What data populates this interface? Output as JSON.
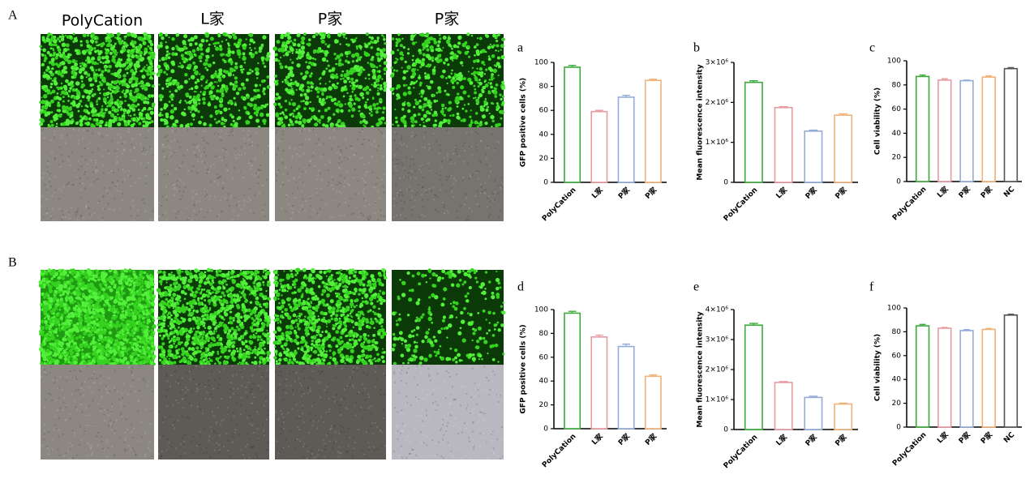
{
  "figure": {
    "panel_labels": [
      "A",
      "B"
    ],
    "column_headers": [
      "PolyCation",
      "L家",
      "P家",
      "P家"
    ]
  },
  "chart_data": [
    {
      "type": "bar",
      "label": "a",
      "y_label": "GFP positive cells (%)",
      "categories": [
        "PolyCation",
        "L家",
        "P家",
        "P家"
      ],
      "values": [
        96,
        59,
        71,
        85
      ],
      "errors": [
        1.5,
        1,
        1.5,
        1
      ],
      "colors": [
        "#3aaa3a",
        "#e89aa0",
        "#93acd8",
        "#f0b27a"
      ],
      "ylim": [
        0,
        100
      ],
      "yticks": [
        0,
        20,
        40,
        60,
        80,
        100
      ]
    },
    {
      "type": "bar",
      "label": "b",
      "y_label": "Mean fluorescence intensity",
      "categories": [
        "PolyCation",
        "L家",
        "P家",
        "P家"
      ],
      "values": [
        2500000,
        1870000,
        1280000,
        1680000
      ],
      "errors": [
        40000,
        25000,
        25000,
        35000
      ],
      "colors": [
        "#3aaa3a",
        "#e89aa0",
        "#93acd8",
        "#f0b27a"
      ],
      "ylim": [
        0,
        3000000
      ],
      "yticks": [
        0,
        {
          "value": 1000000,
          "label": "1×10⁶"
        },
        {
          "value": 2000000,
          "label": "2×10⁶"
        },
        {
          "value": 3000000,
          "label": "3×10⁶"
        }
      ]
    },
    {
      "type": "bar",
      "label": "c",
      "y_label": "Cell viability (%)",
      "categories": [
        "PolyCation",
        "L家",
        "P家",
        "P家",
        "NC"
      ],
      "values": [
        87,
        84,
        83.5,
        86.5,
        93.5
      ],
      "errors": [
        1.2,
        1.2,
        0.5,
        1,
        0.8
      ],
      "colors": [
        "#3aaa3a",
        "#e89aa0",
        "#93acd8",
        "#f0b27a",
        "#555555"
      ],
      "ylim": [
        0,
        100
      ],
      "yticks": [
        0,
        20,
        40,
        60,
        80,
        100
      ]
    },
    {
      "type": "bar",
      "label": "d",
      "y_label": "GFP positive cells (%)",
      "categories": [
        "PolyCation",
        "L家",
        "P家",
        "P家"
      ],
      "values": [
        97,
        77,
        69,
        44
      ],
      "errors": [
        1.5,
        1.5,
        2,
        1.2
      ],
      "colors": [
        "#3aaa3a",
        "#e89aa0",
        "#93acd8",
        "#f0b27a"
      ],
      "ylim": [
        0,
        100
      ],
      "yticks": [
        0,
        20,
        40,
        60,
        80,
        100
      ]
    },
    {
      "type": "bar",
      "label": "e",
      "y_label": "Mean fluorescence intensity",
      "categories": [
        "PolyCation",
        "L家",
        "P家",
        "P家"
      ],
      "values": [
        3480000,
        1570000,
        1070000,
        850000
      ],
      "errors": [
        60000,
        30000,
        40000,
        30000
      ],
      "colors": [
        "#3aaa3a",
        "#e89aa0",
        "#93acd8",
        "#f0b27a"
      ],
      "ylim": [
        0,
        4000000
      ],
      "yticks": [
        0,
        {
          "value": 1000000,
          "label": "1×10⁶"
        },
        {
          "value": 2000000,
          "label": "2×10⁶"
        },
        {
          "value": 3000000,
          "label": "3×10⁶"
        },
        {
          "value": 4000000,
          "label": "4×10⁶"
        }
      ]
    },
    {
      "type": "bar",
      "label": "f",
      "y_label": "Cell viability (%)",
      "categories": [
        "PolyCation",
        "L家",
        "P家",
        "P家",
        "NC"
      ],
      "values": [
        85,
        83,
        81,
        82,
        94
      ],
      "errors": [
        1.2,
        0.6,
        0.8,
        0.8,
        0.8
      ],
      "colors": [
        "#3aaa3a",
        "#e89aa0",
        "#93acd8",
        "#f0b27a",
        "#555555"
      ],
      "ylim": [
        0,
        100
      ],
      "yticks": [
        0,
        20,
        40,
        60,
        80,
        100
      ]
    }
  ]
}
